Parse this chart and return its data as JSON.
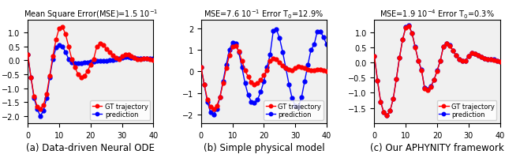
{
  "title_a": "Mean Square Error(MSE)=1.5 10$^{-1}$",
  "title_b": "MSE=7.6 10$^{-1}$ Error T$_0$=12.9%",
  "title_c": "MSE=1.9 10$^{-4}$ Error T$_0$=0.3%",
  "xlabel_a": "(a) Data-driven Neural ODE",
  "xlabel_b": "(b) Simple physical model",
  "xlabel_c": "(c) Our APHYNITY framework",
  "legend_gt": "GT trajectory",
  "legend_pred": "prediction",
  "color_gt": "#ff0000",
  "color_pred": "#0000ff",
  "xlim": [
    0,
    40
  ],
  "xticks": [
    0,
    10,
    20,
    30,
    40
  ],
  "ylim_a": [
    -2.25,
    1.45
  ],
  "yticks_a": [
    -2.0,
    -1.5,
    -1.0,
    -0.5,
    0.0,
    0.5,
    1.0
  ],
  "ylim_b": [
    -2.4,
    2.4
  ],
  "yticks_b": [
    -2,
    -1,
    0,
    1,
    2
  ],
  "ylim_c": [
    -2.0,
    1.4
  ],
  "yticks_c": [
    -1.5,
    -1.0,
    -0.5,
    0.0,
    0.5,
    1.0
  ],
  "t": [
    0,
    1,
    2,
    3,
    4,
    5,
    6,
    7,
    8,
    9,
    10,
    11,
    12,
    13,
    14,
    15,
    16,
    17,
    18,
    19,
    20,
    21,
    22,
    23,
    24,
    25,
    26,
    27,
    28,
    29,
    30,
    31,
    32,
    33,
    34,
    35,
    36,
    37,
    38,
    39,
    40
  ],
  "gt_a": [
    0.2,
    -0.6,
    -1.3,
    -1.65,
    -1.75,
    -1.6,
    -1.2,
    -0.55,
    0.15,
    0.75,
    1.15,
    1.2,
    0.95,
    0.5,
    0.05,
    -0.25,
    -0.5,
    -0.6,
    -0.55,
    -0.4,
    -0.15,
    0.05,
    0.5,
    0.6,
    0.55,
    0.42,
    0.28,
    0.18,
    0.1,
    0.05,
    0.15,
    0.22,
    0.2,
    0.15,
    0.1,
    0.05,
    0.05,
    0.08,
    0.08,
    0.05,
    0.02
  ],
  "pred_a": [
    0.2,
    -0.6,
    -1.35,
    -1.75,
    -2.0,
    -1.8,
    -1.35,
    -0.6,
    0.05,
    0.45,
    0.55,
    0.5,
    0.3,
    0.05,
    -0.08,
    -0.1,
    -0.1,
    -0.1,
    -0.08,
    -0.08,
    -0.05,
    -0.05,
    -0.02,
    -0.02,
    -0.02,
    -0.02,
    0.0,
    0.02,
    0.05,
    0.08,
    0.1,
    0.12,
    0.12,
    0.1,
    0.1,
    0.08,
    0.08,
    0.08,
    0.08,
    0.08,
    0.08
  ],
  "gt_b": [
    0.2,
    -0.6,
    -1.3,
    -1.65,
    -1.75,
    -1.6,
    -1.2,
    -0.55,
    0.15,
    0.75,
    1.15,
    1.2,
    0.95,
    0.5,
    0.05,
    -0.25,
    -0.5,
    -0.6,
    -0.55,
    -0.4,
    -0.15,
    0.05,
    0.5,
    0.6,
    0.55,
    0.42,
    0.28,
    0.18,
    0.1,
    0.05,
    0.15,
    0.22,
    0.2,
    0.15,
    0.1,
    0.05,
    0.05,
    0.08,
    0.08,
    0.05,
    0.02
  ],
  "pred_b": [
    0.2,
    -0.6,
    -1.4,
    -1.9,
    -2.0,
    -1.75,
    -1.2,
    -0.45,
    0.3,
    1.0,
    1.35,
    1.3,
    0.9,
    0.2,
    -0.55,
    -1.1,
    -1.4,
    -1.45,
    -1.3,
    -0.95,
    -0.45,
    0.2,
    0.8,
    1.9,
    1.95,
    1.55,
    0.9,
    0.15,
    -0.6,
    -1.25,
    -1.6,
    -1.65,
    -1.2,
    -0.45,
    0.3,
    1.0,
    1.25,
    1.85,
    1.85,
    1.6,
    1.25
  ],
  "gt_c": [
    0.2,
    -0.6,
    -1.3,
    -1.65,
    -1.75,
    -1.6,
    -1.2,
    -0.55,
    0.15,
    0.75,
    1.15,
    1.2,
    0.95,
    0.5,
    0.05,
    -0.25,
    -0.85,
    -0.9,
    -0.8,
    -0.58,
    -0.28,
    0.05,
    0.52,
    0.62,
    0.55,
    0.38,
    0.22,
    0.1,
    0.05,
    0.05,
    0.2,
    0.3,
    0.28,
    0.22,
    0.18,
    0.12,
    0.1,
    0.1,
    0.08,
    0.05,
    0.02
  ],
  "pred_c": [
    0.2,
    -0.6,
    -1.3,
    -1.65,
    -1.75,
    -1.6,
    -1.2,
    -0.54,
    0.16,
    0.76,
    1.16,
    1.21,
    0.96,
    0.51,
    0.06,
    -0.24,
    -0.84,
    -0.89,
    -0.79,
    -0.57,
    -0.27,
    0.06,
    0.53,
    0.63,
    0.56,
    0.39,
    0.23,
    0.11,
    0.06,
    0.06,
    0.21,
    0.31,
    0.29,
    0.23,
    0.19,
    0.13,
    0.11,
    0.11,
    0.09,
    0.06,
    0.03
  ],
  "marker_size": 3.5,
  "linewidth": 1.0,
  "title_fontsize": 7.0,
  "label_fontsize": 8.5,
  "tick_fontsize": 7,
  "legend_fontsize": 6.0,
  "background_color": "#f0f0f0"
}
